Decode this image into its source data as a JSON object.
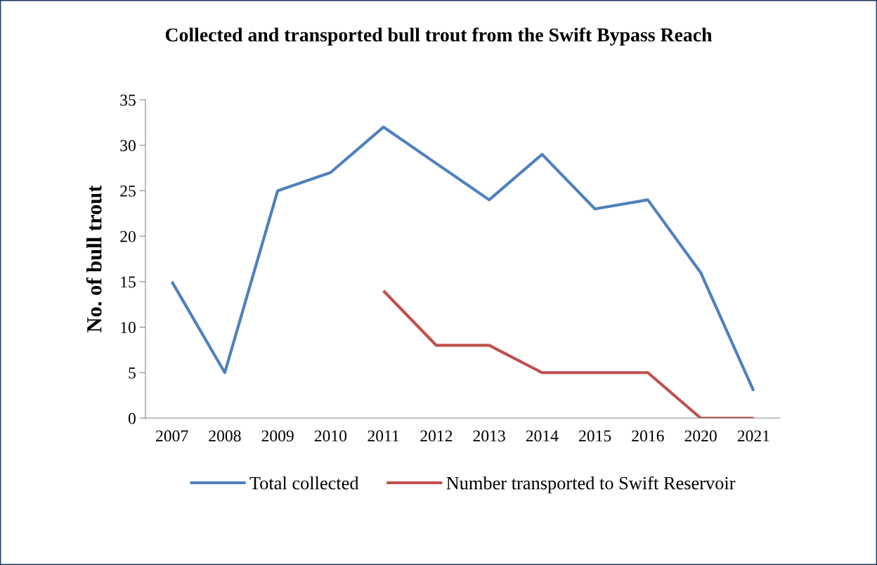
{
  "chart_data": {
    "type": "line",
    "title": "Collected and transported bull trout from the Swift Bypass Reach",
    "ylabel": "No. of bull trout",
    "categories": [
      "2007",
      "2008",
      "2009",
      "2010",
      "2011",
      "2012",
      "2013",
      "2014",
      "2015",
      "2016",
      "2020",
      "2021"
    ],
    "series": [
      {
        "name": "Total collected",
        "color": "#4f81bd",
        "values": [
          15,
          5,
          25,
          27,
          32,
          28,
          24,
          29,
          23,
          24,
          16,
          3
        ]
      },
      {
        "name": "Number transported to Swift Reservoir",
        "color": "#c0504d",
        "values": [
          null,
          null,
          null,
          null,
          14,
          8,
          8,
          5,
          5,
          5,
          0,
          0
        ]
      }
    ],
    "ylim": [
      0,
      35
    ],
    "yticks": [
      0,
      5,
      10,
      15,
      20,
      25,
      30,
      35
    ],
    "grid": false,
    "legend": "bottom",
    "marker": "none",
    "line_style": "solid"
  }
}
